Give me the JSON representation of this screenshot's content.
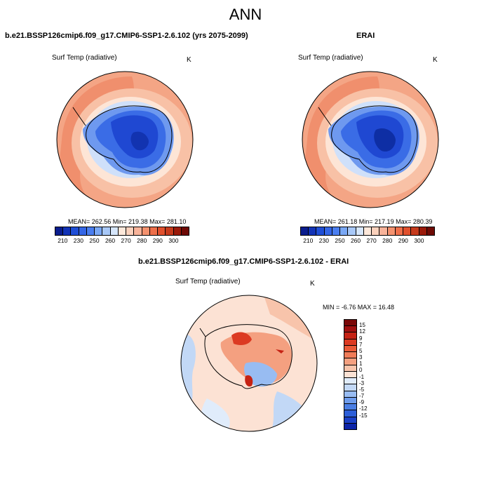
{
  "page": {
    "title": "ANN"
  },
  "panels": [
    {
      "title": "b.e21.BSSP126cmip6.f09_g17.CMIP6-SSP1-2.6.102 (yrs 2075-2099)",
      "variable": "Surf Temp (radiative)",
      "units": "K",
      "stats": "MEAN= 262.56  Min= 219.38  Max= 281.10"
    },
    {
      "title": "ERAI",
      "variable": "Surf Temp (radiative)",
      "units": "K",
      "stats": "MEAN= 261.18  Min= 217.19  Max= 280.39"
    },
    {
      "title": "b.e21.BSSP126cmip6.f09_g17.CMIP6-SSP1-2.6.102 - ERAI",
      "variable": "Surf Temp (radiative)",
      "units": "K",
      "stats": "MIN = -6.76  MAX = 16.48"
    }
  ],
  "chart_data": [
    {
      "type": "heatmap",
      "projection": "south-polar-stereographic",
      "title": "b.e21.BSSP126cmip6.f09_g17.CMIP6-SSP1-2.6.102 (yrs 2075-2099)",
      "variable": "Surf Temp (radiative)",
      "units": "K",
      "mean": 262.56,
      "min": 219.38,
      "max": 281.1,
      "colorbar": {
        "orientation": "horizontal",
        "tick_labels": [
          "210",
          "230",
          "250",
          "260",
          "270",
          "280",
          "290",
          "300"
        ],
        "colors": [
          "#0a1d8e",
          "#1233b6",
          "#1f4ed6",
          "#3466e6",
          "#4a7ef0",
          "#7aa8f5",
          "#a8c8f8",
          "#d6e6fb",
          "#fde8da",
          "#fbd1bc",
          "#f8b39a",
          "#f4926f",
          "#ee6f4a",
          "#e0502d",
          "#c53a1c",
          "#9a1a0a",
          "#6e0a05"
        ]
      }
    },
    {
      "type": "heatmap",
      "projection": "south-polar-stereographic",
      "title": "ERAI",
      "variable": "Surf Temp (radiative)",
      "units": "K",
      "mean": 261.18,
      "min": 217.19,
      "max": 280.39,
      "colorbar": {
        "orientation": "horizontal",
        "tick_labels": [
          "210",
          "230",
          "250",
          "260",
          "270",
          "280",
          "290",
          "300"
        ],
        "colors": [
          "#0a1d8e",
          "#1233b6",
          "#1f4ed6",
          "#3466e6",
          "#4a7ef0",
          "#7aa8f5",
          "#a8c8f8",
          "#d6e6fb",
          "#fde8da",
          "#fbd1bc",
          "#f8b39a",
          "#f4926f",
          "#ee6f4a",
          "#e0502d",
          "#c53a1c",
          "#9a1a0a",
          "#6e0a05"
        ]
      }
    },
    {
      "type": "heatmap",
      "projection": "south-polar-stereographic",
      "title": "b.e21.BSSP126cmip6.f09_g17.CMIP6-SSP1-2.6.102 - ERAI",
      "variable": "Surf Temp (radiative)",
      "units": "K",
      "min": -6.76,
      "max": 16.48,
      "colorbar": {
        "orientation": "vertical",
        "tick_labels": [
          "15",
          "12",
          "9",
          "7",
          "5",
          "3",
          "1",
          "0",
          "-1",
          "-3",
          "-5",
          "-7",
          "-9",
          "-12",
          "-15"
        ],
        "colors": [
          "#7a0808",
          "#a01010",
          "#c52214",
          "#dc3a22",
          "#ea5a38",
          "#f07c58",
          "#f4a080",
          "#f8c4ab",
          "#fce2d4",
          "#e0ecfb",
          "#c2d8f6",
          "#98bcf2",
          "#6e9cec",
          "#4a7ee4",
          "#2c5ed8",
          "#1a3fc6",
          "#0c24a8"
        ]
      }
    }
  ]
}
